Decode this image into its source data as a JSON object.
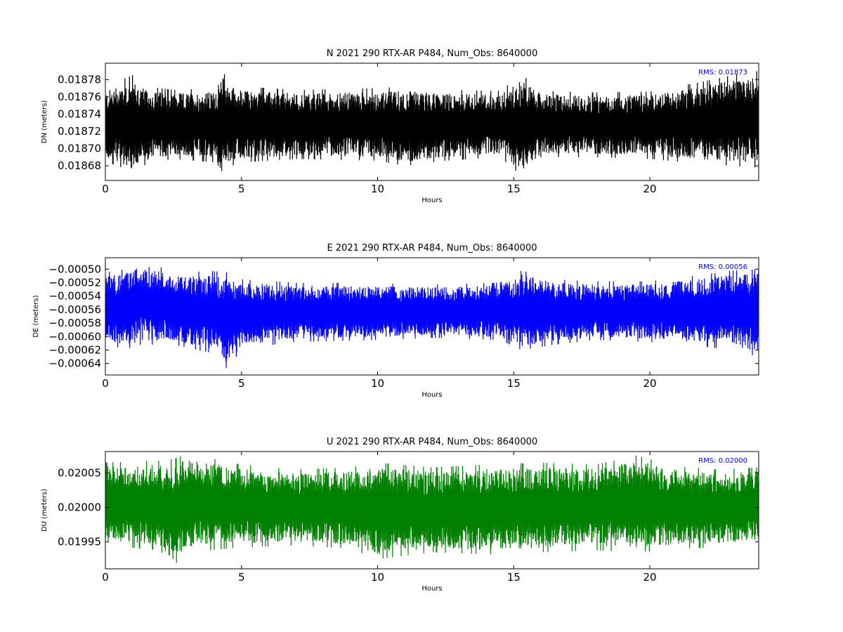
{
  "chart_data": [
    {
      "type": "line",
      "title": "N 2021 290 RTX-AR  P484, Num_Obs: 8640000",
      "xlabel": "Hours",
      "ylabel": "DN (meters)",
      "xlim": [
        0,
        24
      ],
      "ylim": [
        0.018663,
        0.018799
      ],
      "xticks": [
        0,
        5,
        10,
        15,
        20
      ],
      "xtick_labels": [
        "0",
        "5",
        "10",
        "15",
        "20"
      ],
      "yticks": [
        0.01868,
        0.0187,
        0.01872,
        0.01874,
        0.01876,
        0.01878
      ],
      "ytick_labels": [
        "0.01868",
        "0.01870",
        "0.01872",
        "0.01874",
        "0.01876",
        "0.01878"
      ],
      "color": "#000000",
      "annotation": "RMS:  0.01873",
      "grid": false,
      "series": [
        {
          "envelope": {
            "hours": [
              0,
              0.5,
              1.0,
              1.5,
              2.5,
              4.0,
              4.3,
              4.5,
              5.0,
              7.0,
              10.0,
              11.0,
              12.5,
              14.5,
              15.3,
              16.0,
              18.0,
              20.0,
              22.0,
              23.0,
              24.0
            ],
            "upper": [
              0.01877,
              0.018779,
              0.018785,
              0.018772,
              0.018768,
              0.01877,
              0.01879,
              0.01878,
              0.018772,
              0.018768,
              0.01877,
              0.018772,
              0.018768,
              0.018767,
              0.018786,
              0.018767,
              0.018765,
              0.018766,
              0.018778,
              0.018785,
              0.01879
            ],
            "lower": [
              0.018684,
              0.01868,
              0.018668,
              0.018682,
              0.018688,
              0.018684,
              0.018665,
              0.018678,
              0.018684,
              0.018688,
              0.018686,
              0.01868,
              0.018686,
              0.01869,
              0.018668,
              0.01869,
              0.01869,
              0.018688,
              0.018682,
              0.01868,
              0.018678
            ]
          }
        }
      ]
    },
    {
      "type": "line",
      "title": "E 2021 290 RTX-AR  P484, Num_Obs: 8640000",
      "xlabel": "Hours",
      "ylabel": "DE (meters)",
      "xlim": [
        0,
        24
      ],
      "ylim": [
        -0.000657,
        -0.000483
      ],
      "xticks": [
        0,
        5,
        10,
        15,
        20
      ],
      "xtick_labels": [
        "0",
        "5",
        "10",
        "15",
        "20"
      ],
      "yticks": [
        -0.00064,
        -0.00062,
        -0.0006,
        -0.00058,
        -0.00056,
        -0.00054,
        -0.00052,
        -0.0005
      ],
      "ytick_labels": [
        "−0.00064",
        "−0.00062",
        "−0.00060",
        "−0.00058",
        "−0.00056",
        "−0.00054",
        "−0.00052",
        "−0.00050"
      ],
      "color": "#0000ff",
      "annotation": "RMS:  0.00056",
      "grid": false,
      "series": [
        {
          "envelope": {
            "hours": [
              0,
              1.0,
              1.3,
              2.5,
              4.0,
              4.5,
              5.0,
              7.0,
              10.0,
              12.0,
              14.5,
              15.3,
              16.5,
              18.0,
              20.0,
              22.0,
              23.0,
              24.0
            ],
            "upper": [
              -0.000505,
              -0.000498,
              -0.000485,
              -0.000505,
              -0.000503,
              -0.000505,
              -0.000515,
              -0.00052,
              -0.000521,
              -0.000523,
              -0.00052,
              -0.000502,
              -0.000515,
              -0.000518,
              -0.000518,
              -0.000508,
              -0.000502,
              -0.0005
            ],
            "lower": [
              -0.000615,
              -0.000617,
              -0.000612,
              -0.000612,
              -0.000625,
              -0.00065,
              -0.000618,
              -0.000608,
              -0.000605,
              -0.000602,
              -0.000605,
              -0.00062,
              -0.000612,
              -0.000605,
              -0.000608,
              -0.000615,
              -0.00062,
              -0.00063
            ]
          }
        }
      ]
    },
    {
      "type": "line",
      "title": "U 2021 290 RTX-AR  P484, Num_Obs: 8640000",
      "xlabel": "Hours",
      "ylabel": "DU (meters)",
      "xlim": [
        0,
        24
      ],
      "ylim": [
        0.019911,
        0.020081
      ],
      "xticks": [
        0,
        5,
        10,
        15,
        20
      ],
      "xtick_labels": [
        "0",
        "5",
        "10",
        "15",
        "20"
      ],
      "yticks": [
        0.01995,
        0.02,
        0.02005
      ],
      "ytick_labels": [
        "0.01995",
        "0.02000",
        "0.02005"
      ],
      "color": "#008000",
      "annotation": "RMS:  0.02000",
      "grid": false,
      "series": [
        {
          "envelope": {
            "hours": [
              0,
              2.0,
              2.5,
              3.0,
              5.0,
              7.0,
              9.0,
              10.0,
              12.0,
              14.0,
              16.0,
              18.0,
              19.5,
              21.0,
              22.5,
              24.0
            ],
            "upper": [
              0.020065,
              0.020068,
              0.02007,
              0.020078,
              0.020062,
              0.020055,
              0.020058,
              0.020065,
              0.020058,
              0.020062,
              0.020065,
              0.020062,
              0.020075,
              0.02006,
              0.020055,
              0.020058
            ],
            "lower": [
              0.019945,
              0.019938,
              0.019915,
              0.019935,
              0.019942,
              0.019945,
              0.01994,
              0.019925,
              0.019935,
              0.019932,
              0.019935,
              0.019938,
              0.019935,
              0.01994,
              0.019942,
              0.019948
            ]
          }
        }
      ]
    }
  ]
}
